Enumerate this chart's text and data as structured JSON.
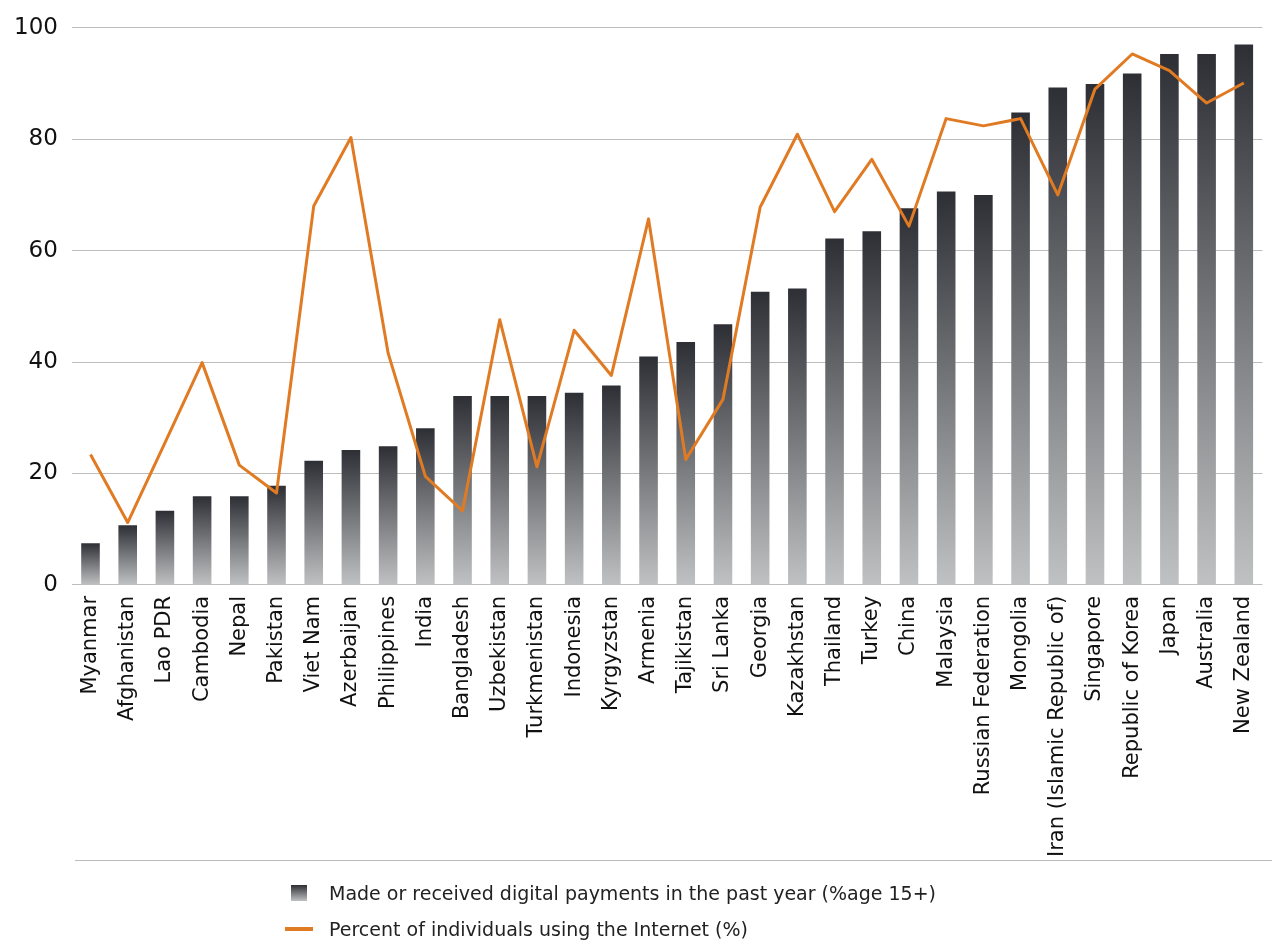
{
  "chart_data": {
    "type": "bar",
    "categories": [
      "Myanmar",
      "Afghanistan",
      "Lao PDR",
      "Cambodia",
      "Nepal",
      "Pakistan",
      "Viet Nam",
      "Azerbaijan",
      "Philippines",
      "India",
      "Bangladesh",
      "Uzbekistan",
      "Turkmenistan",
      "Indonesia",
      "Kyrgyzstan",
      "Armenia",
      "Tajikistan",
      "Sri Lanka",
      "Georgia",
      "Kazakhstan",
      "Thailand",
      "Turkey",
      "China",
      "Malaysia",
      "Russian Federation",
      "Mongolia",
      "Iran (Islamic Republic of)",
      "Singapore",
      "Republic of Korea",
      "Japan",
      "Australia",
      "New Zealand"
    ],
    "series": [
      {
        "name": "Made or received digital payments in the past year (%age 15+)",
        "color": "#2e2f35",
        "values": [
          7.5,
          10.7,
          13.3,
          15.9,
          15.9,
          17.8,
          22.3,
          24.2,
          24.9,
          28.1,
          33.9,
          33.9,
          33.9,
          34.5,
          35.8,
          41,
          43.6,
          46.8,
          52.6,
          53.2,
          62.2,
          63.5,
          67.6,
          70.6,
          70,
          84.8,
          89.3,
          89.9,
          91.8,
          95.3,
          95.3,
          97
        ]
      },
      {
        "name": "Percent of individuals using the Internet (%)",
        "type": "line",
        "color": "#e07b24",
        "values": [
          23.4,
          11.2,
          25.5,
          39.9,
          21.5,
          16.5,
          68,
          80.3,
          41.6,
          19.5,
          13.3,
          47.6,
          21.2,
          45.7,
          37.6,
          65.7,
          22.5,
          33.3,
          67.8,
          80.9,
          67,
          76.4,
          64.4,
          83.7,
          82.4,
          83.7,
          70,
          89,
          95.3,
          92.3,
          86.5,
          90.1
        ]
      }
    ],
    "ylim": [
      0,
      100
    ],
    "yticks": [
      0,
      20,
      40,
      60,
      80,
      100
    ],
    "grid": "y",
    "legend": "bottom",
    "marker": "none",
    "line_style": "solid"
  }
}
